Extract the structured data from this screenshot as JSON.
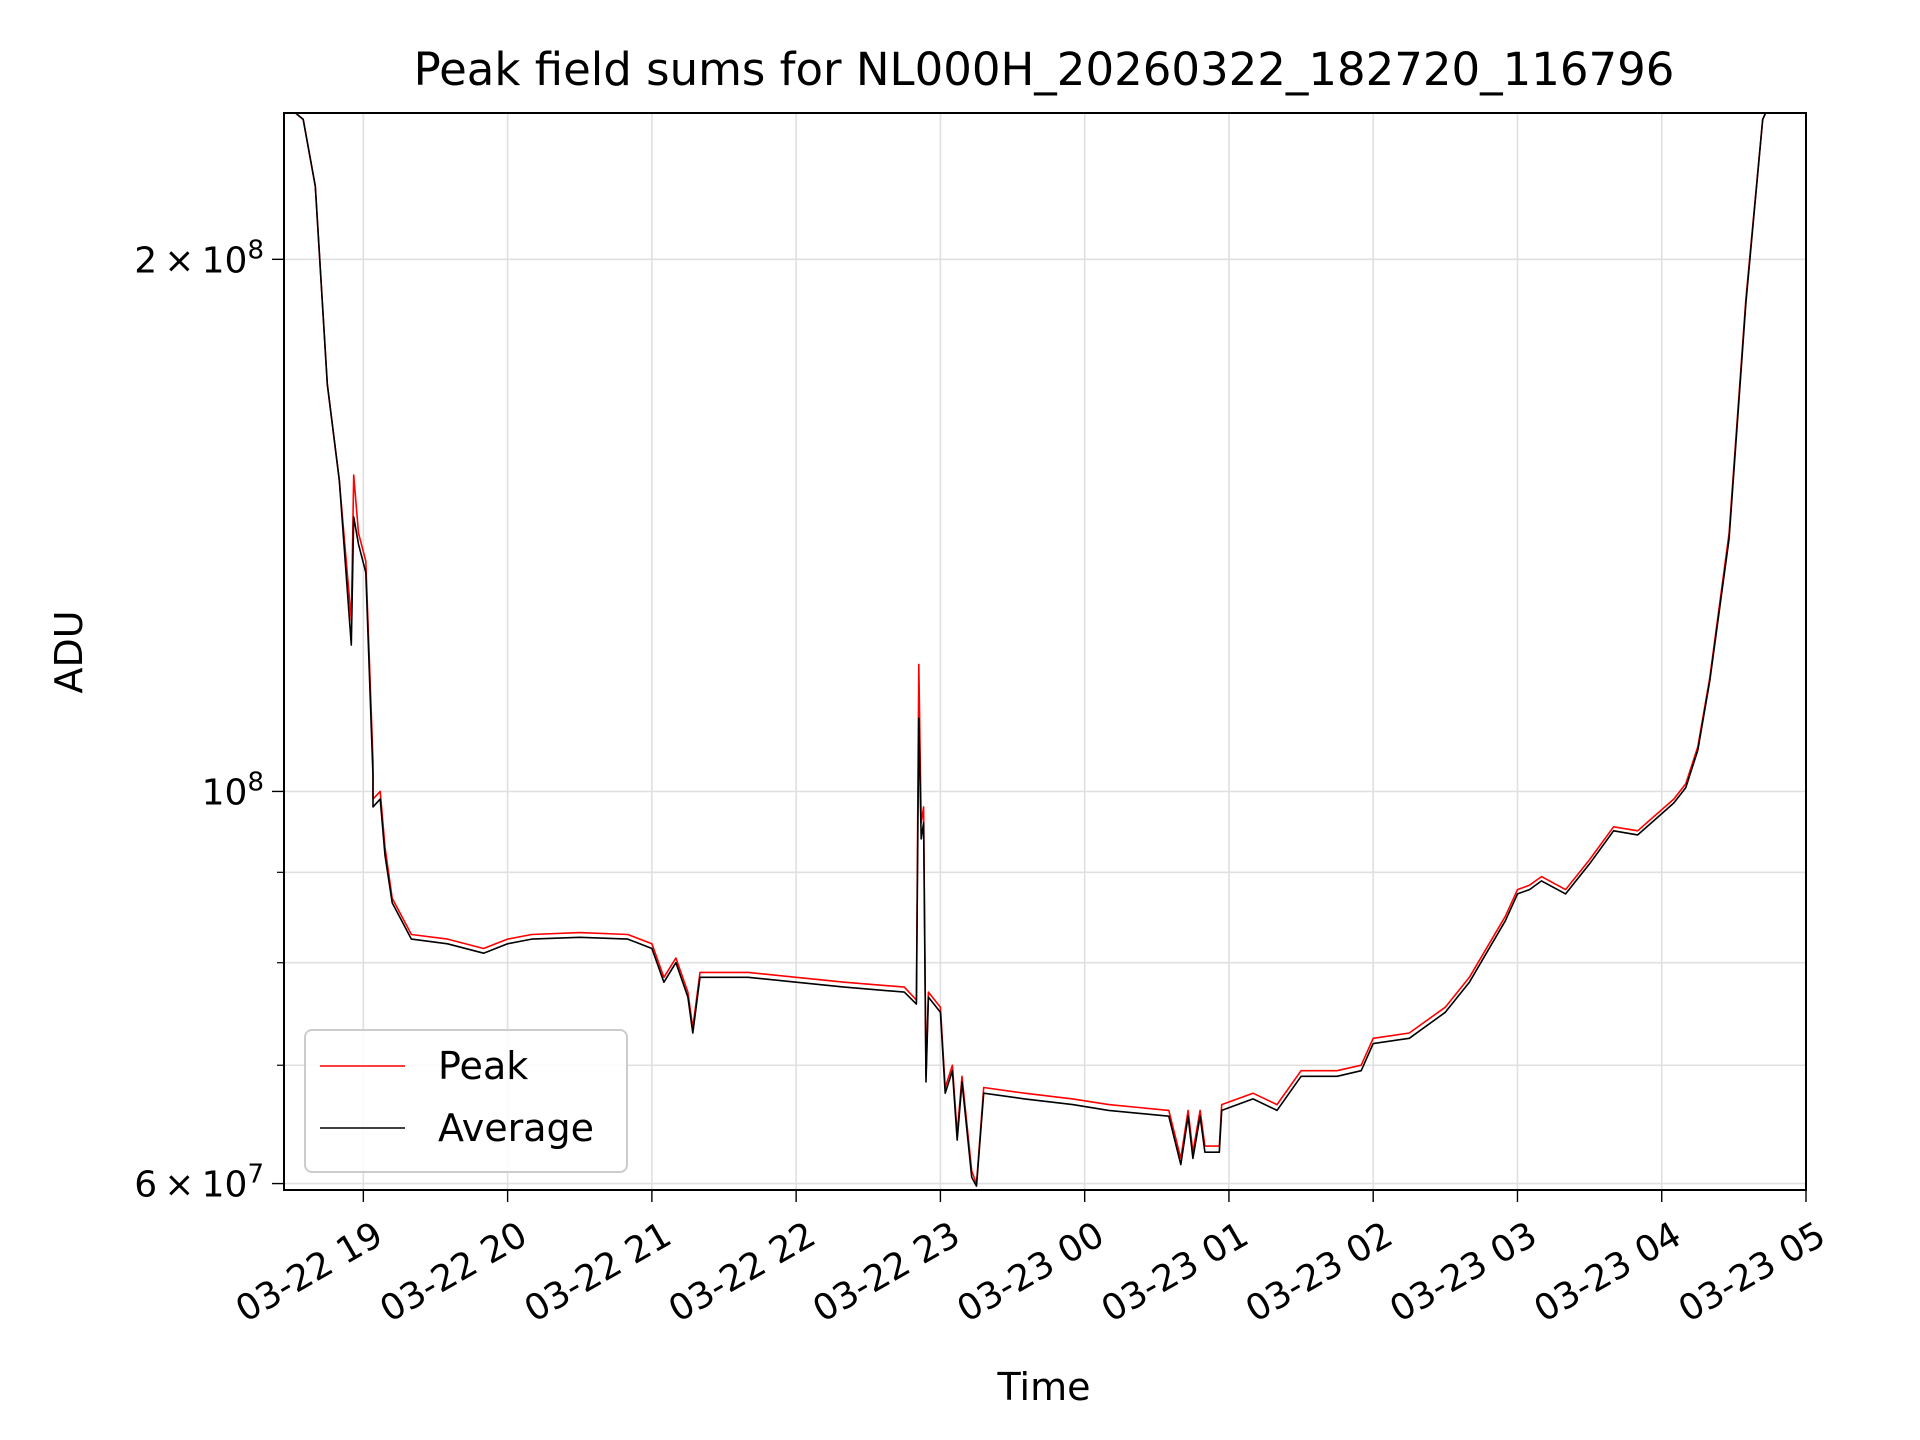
{
  "chart_data": {
    "type": "line",
    "title": "Peak field sums for NL000H_20260322_182720_116796",
    "xlabel": "Time",
    "ylabel": "ADU",
    "y_scale": "log",
    "ylim": [
      59500000,
      242000000
    ],
    "xlim": [
      "2026-03-22 18:27",
      "2026-03-23 05:00"
    ],
    "grid": true,
    "legend_position": "lower-left",
    "x_ticks": [
      {
        "value": "2026-03-22 19:00",
        "label": "03-22 19"
      },
      {
        "value": "2026-03-22 20:00",
        "label": "03-22 20"
      },
      {
        "value": "2026-03-22 21:00",
        "label": "03-22 21"
      },
      {
        "value": "2026-03-22 22:00",
        "label": "03-22 22"
      },
      {
        "value": "2026-03-22 23:00",
        "label": "03-22 23"
      },
      {
        "value": "2026-03-23 00:00",
        "label": "03-23 00"
      },
      {
        "value": "2026-03-23 01:00",
        "label": "03-23 01"
      },
      {
        "value": "2026-03-23 02:00",
        "label": "03-23 02"
      },
      {
        "value": "2026-03-23 03:00",
        "label": "03-23 03"
      },
      {
        "value": "2026-03-23 04:00",
        "label": "03-23 04"
      },
      {
        "value": "2026-03-23 05:00",
        "label": "03-23 05"
      }
    ],
    "y_major_ticks": [
      {
        "value": 60000000,
        "mantissa": "6",
        "base": "10",
        "exp": "7"
      },
      {
        "value": 100000000,
        "mantissa": "",
        "base": "10",
        "exp": "8"
      },
      {
        "value": 200000000,
        "mantissa": "2",
        "base": "10",
        "exp": "8"
      }
    ],
    "y_minor_gridlines": [
      70000000,
      80000000,
      90000000
    ],
    "series": [
      {
        "name": "Peak",
        "color": "#ff0000",
        "points": [
          [
            "2026-03-22 18:27",
            245000000
          ],
          [
            "2026-03-22 18:35",
            240000000
          ],
          [
            "2026-03-22 18:40",
            220000000
          ],
          [
            "2026-03-22 18:45",
            170000000
          ],
          [
            "2026-03-22 18:50",
            150000000
          ],
          [
            "2026-03-22 18:55",
            125000000
          ],
          [
            "2026-03-22 18:56",
            151000000
          ],
          [
            "2026-03-22 18:58",
            140000000
          ],
          [
            "2026-03-22 19:01",
            135000000
          ],
          [
            "2026-03-22 19:04",
            104000000
          ],
          [
            "2026-03-22 19:04",
            99000000
          ],
          [
            "2026-03-22 19:07",
            100000000
          ],
          [
            "2026-03-22 19:09",
            93000000
          ],
          [
            "2026-03-22 19:12",
            87000000
          ],
          [
            "2026-03-22 19:20",
            83000000
          ],
          [
            "2026-03-22 19:35",
            82500000
          ],
          [
            "2026-03-22 19:50",
            81500000
          ],
          [
            "2026-03-22 20:00",
            82500000
          ],
          [
            "2026-03-22 20:10",
            83000000
          ],
          [
            "2026-03-22 20:30",
            83200000
          ],
          [
            "2026-03-22 20:50",
            83000000
          ],
          [
            "2026-03-22 21:00",
            82000000
          ],
          [
            "2026-03-22 21:05",
            78500000
          ],
          [
            "2026-03-22 21:10",
            80500000
          ],
          [
            "2026-03-22 21:15",
            77000000
          ],
          [
            "2026-03-22 21:17",
            73500000
          ],
          [
            "2026-03-22 21:20",
            79000000
          ],
          [
            "2026-03-22 21:40",
            79000000
          ],
          [
            "2026-03-22 22:00",
            78500000
          ],
          [
            "2026-03-22 22:20",
            78000000
          ],
          [
            "2026-03-22 22:45",
            77500000
          ],
          [
            "2026-03-22 22:50",
            76200000
          ],
          [
            "2026-03-22 22:51",
            118000000
          ],
          [
            "2026-03-22 22:52",
            96000000
          ],
          [
            "2026-03-22 22:53",
            98000000
          ],
          [
            "2026-03-22 22:54",
            69000000
          ],
          [
            "2026-03-22 22:55",
            77000000
          ],
          [
            "2026-03-22 23:00",
            75500000
          ],
          [
            "2026-03-22 23:02",
            68000000
          ],
          [
            "2026-03-22 23:05",
            70000000
          ],
          [
            "2026-03-22 23:07",
            64000000
          ],
          [
            "2026-03-22 23:09",
            69000000
          ],
          [
            "2026-03-22 23:13",
            61000000
          ],
          [
            "2026-03-22 23:15",
            60000000
          ],
          [
            "2026-03-22 23:18",
            68000000
          ],
          [
            "2026-03-22 23:35",
            67500000
          ],
          [
            "2026-03-22 23:55",
            67000000
          ],
          [
            "2026-03-23 00:10",
            66500000
          ],
          [
            "2026-03-23 00:35",
            66000000
          ],
          [
            "2026-03-23 00:40",
            62000000
          ],
          [
            "2026-03-23 00:43",
            66000000
          ],
          [
            "2026-03-23 00:45",
            62500000
          ],
          [
            "2026-03-23 00:48",
            66000000
          ],
          [
            "2026-03-23 00:50",
            63000000
          ],
          [
            "2026-03-23 00:56",
            63000000
          ],
          [
            "2026-03-23 00:57",
            66500000
          ],
          [
            "2026-03-23 01:10",
            67500000
          ],
          [
            "2026-03-23 01:20",
            66500000
          ],
          [
            "2026-03-23 01:30",
            69500000
          ],
          [
            "2026-03-23 01:45",
            69500000
          ],
          [
            "2026-03-23 01:55",
            70000000
          ],
          [
            "2026-03-23 02:00",
            72500000
          ],
          [
            "2026-03-23 02:15",
            73000000
          ],
          [
            "2026-03-23 02:30",
            75500000
          ],
          [
            "2026-03-23 02:40",
            78500000
          ],
          [
            "2026-03-23 02:55",
            85000000
          ],
          [
            "2026-03-23 03:00",
            88000000
          ],
          [
            "2026-03-23 03:05",
            88500000
          ],
          [
            "2026-03-23 03:10",
            89500000
          ],
          [
            "2026-03-23 03:20",
            88000000
          ],
          [
            "2026-03-23 03:30",
            91500000
          ],
          [
            "2026-03-23 03:40",
            95500000
          ],
          [
            "2026-03-23 03:50",
            95000000
          ],
          [
            "2026-03-23 04:05",
            99000000
          ],
          [
            "2026-03-23 04:10",
            101000000
          ],
          [
            "2026-03-23 04:15",
            106000000
          ],
          [
            "2026-03-23 04:20",
            116000000
          ],
          [
            "2026-03-23 04:28",
            140000000
          ],
          [
            "2026-03-23 04:35",
            190000000
          ],
          [
            "2026-03-23 04:42",
            240000000
          ],
          [
            "2026-03-23 04:45",
            245000000
          ]
        ]
      },
      {
        "name": "Average",
        "color": "#000000",
        "points": [
          [
            "2026-03-22 18:27",
            245000000
          ],
          [
            "2026-03-22 18:35",
            240000000
          ],
          [
            "2026-03-22 18:40",
            220000000
          ],
          [
            "2026-03-22 18:45",
            170000000
          ],
          [
            "2026-03-22 18:50",
            150000000
          ],
          [
            "2026-03-22 18:55",
            121000000
          ],
          [
            "2026-03-22 18:56",
            143000000
          ],
          [
            "2026-03-22 18:58",
            138000000
          ],
          [
            "2026-03-22 19:01",
            133000000
          ],
          [
            "2026-03-22 19:04",
            102000000
          ],
          [
            "2026-03-22 19:04",
            98000000
          ],
          [
            "2026-03-22 19:07",
            99000000
          ],
          [
            "2026-03-22 19:09",
            92000000
          ],
          [
            "2026-03-22 19:12",
            86500000
          ],
          [
            "2026-03-22 19:20",
            82500000
          ],
          [
            "2026-03-22 19:35",
            82000000
          ],
          [
            "2026-03-22 19:50",
            81000000
          ],
          [
            "2026-03-22 20:00",
            82000000
          ],
          [
            "2026-03-22 20:10",
            82500000
          ],
          [
            "2026-03-22 20:30",
            82700000
          ],
          [
            "2026-03-22 20:50",
            82500000
          ],
          [
            "2026-03-22 21:00",
            81500000
          ],
          [
            "2026-03-22 21:05",
            78000000
          ],
          [
            "2026-03-22 21:10",
            80000000
          ],
          [
            "2026-03-22 21:15",
            76500000
          ],
          [
            "2026-03-22 21:17",
            73000000
          ],
          [
            "2026-03-22 21:20",
            78500000
          ],
          [
            "2026-03-22 21:40",
            78500000
          ],
          [
            "2026-03-22 22:00",
            78000000
          ],
          [
            "2026-03-22 22:20",
            77500000
          ],
          [
            "2026-03-22 22:45",
            77000000
          ],
          [
            "2026-03-22 22:50",
            75800000
          ],
          [
            "2026-03-22 22:51",
            110000000
          ],
          [
            "2026-03-22 22:52",
            94000000
          ],
          [
            "2026-03-22 22:53",
            96000000
          ],
          [
            "2026-03-22 22:54",
            68500000
          ],
          [
            "2026-03-22 22:55",
            76500000
          ],
          [
            "2026-03-22 23:00",
            75000000
          ],
          [
            "2026-03-22 23:02",
            67500000
          ],
          [
            "2026-03-22 23:05",
            69500000
          ],
          [
            "2026-03-22 23:07",
            63500000
          ],
          [
            "2026-03-22 23:09",
            68500000
          ],
          [
            "2026-03-22 23:13",
            60500000
          ],
          [
            "2026-03-22 23:15",
            59800000
          ],
          [
            "2026-03-22 23:18",
            67500000
          ],
          [
            "2026-03-22 23:35",
            67000000
          ],
          [
            "2026-03-22 23:55",
            66500000
          ],
          [
            "2026-03-23 00:10",
            66000000
          ],
          [
            "2026-03-23 00:35",
            65500000
          ],
          [
            "2026-03-23 00:40",
            61500000
          ],
          [
            "2026-03-23 00:43",
            65500000
          ],
          [
            "2026-03-23 00:45",
            62000000
          ],
          [
            "2026-03-23 00:48",
            65500000
          ],
          [
            "2026-03-23 00:50",
            62500000
          ],
          [
            "2026-03-23 00:56",
            62500000
          ],
          [
            "2026-03-23 00:57",
            66000000
          ],
          [
            "2026-03-23 01:10",
            67000000
          ],
          [
            "2026-03-23 01:20",
            66000000
          ],
          [
            "2026-03-23 01:30",
            69000000
          ],
          [
            "2026-03-23 01:45",
            69000000
          ],
          [
            "2026-03-23 01:55",
            69500000
          ],
          [
            "2026-03-23 02:00",
            72000000
          ],
          [
            "2026-03-23 02:15",
            72500000
          ],
          [
            "2026-03-23 02:30",
            75000000
          ],
          [
            "2026-03-23 02:40",
            78000000
          ],
          [
            "2026-03-23 02:55",
            84500000
          ],
          [
            "2026-03-23 03:00",
            87500000
          ],
          [
            "2026-03-23 03:05",
            88000000
          ],
          [
            "2026-03-23 03:10",
            89000000
          ],
          [
            "2026-03-23 03:20",
            87500000
          ],
          [
            "2026-03-23 03:30",
            91000000
          ],
          [
            "2026-03-23 03:40",
            95000000
          ],
          [
            "2026-03-23 03:50",
            94500000
          ],
          [
            "2026-03-23 04:05",
            98500000
          ],
          [
            "2026-03-23 04:10",
            100500000
          ],
          [
            "2026-03-23 04:15",
            105500000
          ],
          [
            "2026-03-23 04:20",
            115500000
          ],
          [
            "2026-03-23 04:28",
            139000000
          ],
          [
            "2026-03-23 04:35",
            189000000
          ],
          [
            "2026-03-23 04:42",
            240000000
          ],
          [
            "2026-03-23 04:45",
            245000000
          ]
        ]
      }
    ]
  }
}
